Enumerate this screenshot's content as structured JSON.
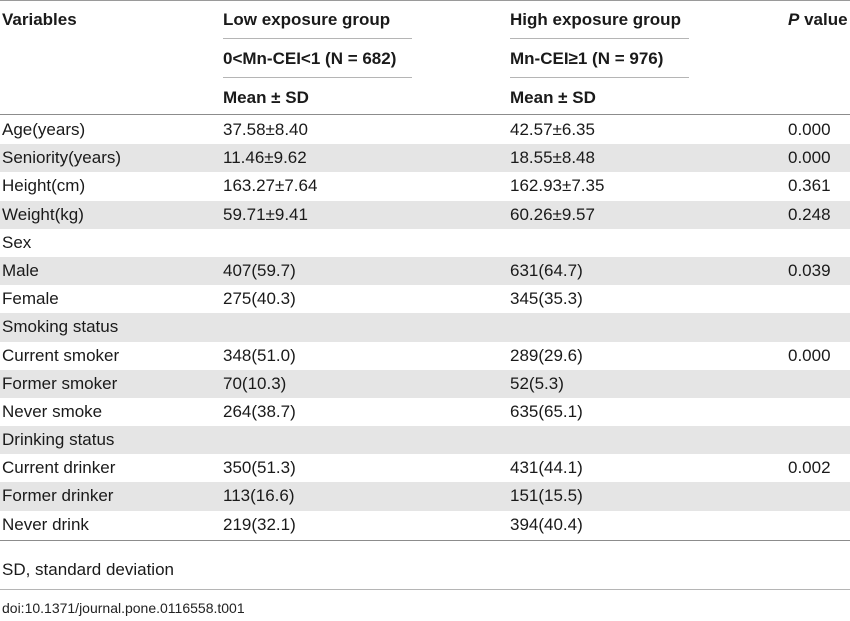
{
  "table": {
    "headers": {
      "variables": "Variables",
      "low_group": "Low exposure group",
      "low_criteria": "0<Mn-CEI<1 (N = 682)",
      "low_stat": "Mean ± SD",
      "high_group": "High exposure group",
      "high_criteria": "Mn-CEI≥1 (N = 976)",
      "high_stat": "Mean ± SD",
      "p_value_italic": "P",
      "p_value_rest": " value"
    },
    "rows": [
      {
        "variable": "Age(years)",
        "low": "37.58±8.40",
        "high": "42.57±6.35",
        "p": "0.000"
      },
      {
        "variable": "Seniority(years)",
        "low": "11.46±9.62",
        "high": "18.55±8.48",
        "p": "0.000"
      },
      {
        "variable": "Height(cm)",
        "low": "163.27±7.64",
        "high": "162.93±7.35",
        "p": "0.361"
      },
      {
        "variable": "Weight(kg)",
        "low": "59.71±9.41",
        "high": "60.26±9.57",
        "p": "0.248"
      },
      {
        "variable": "Sex",
        "low": "",
        "high": "",
        "p": ""
      },
      {
        "variable": "Male",
        "low": "407(59.7)",
        "high": "631(64.7)",
        "p": "0.039"
      },
      {
        "variable": "Female",
        "low": "275(40.3)",
        "high": "345(35.3)",
        "p": ""
      },
      {
        "variable": "Smoking status",
        "low": "",
        "high": "",
        "p": ""
      },
      {
        "variable": "Current smoker",
        "low": "348(51.0)",
        "high": "289(29.6)",
        "p": "0.000"
      },
      {
        "variable": "Former smoker",
        "low": "70(10.3)",
        "high": "52(5.3)",
        "p": ""
      },
      {
        "variable": "Never smoke",
        "low": "264(38.7)",
        "high": "635(65.1)",
        "p": ""
      },
      {
        "variable": "Drinking status",
        "low": "",
        "high": "",
        "p": ""
      },
      {
        "variable": "Current drinker",
        "low": "350(51.3)",
        "high": "431(44.1)",
        "p": "0.002"
      },
      {
        "variable": "Former drinker",
        "low": "113(16.6)",
        "high": "151(15.5)",
        "p": ""
      },
      {
        "variable": "Never drink",
        "low": "219(32.1)",
        "high": "394(40.4)",
        "p": ""
      }
    ]
  },
  "footnote": "SD, standard deviation",
  "doi": "doi:10.1371/journal.pone.0116558.t001",
  "colors": {
    "row_shade": "#e5e5e5",
    "rule": "#8c8c8c"
  }
}
